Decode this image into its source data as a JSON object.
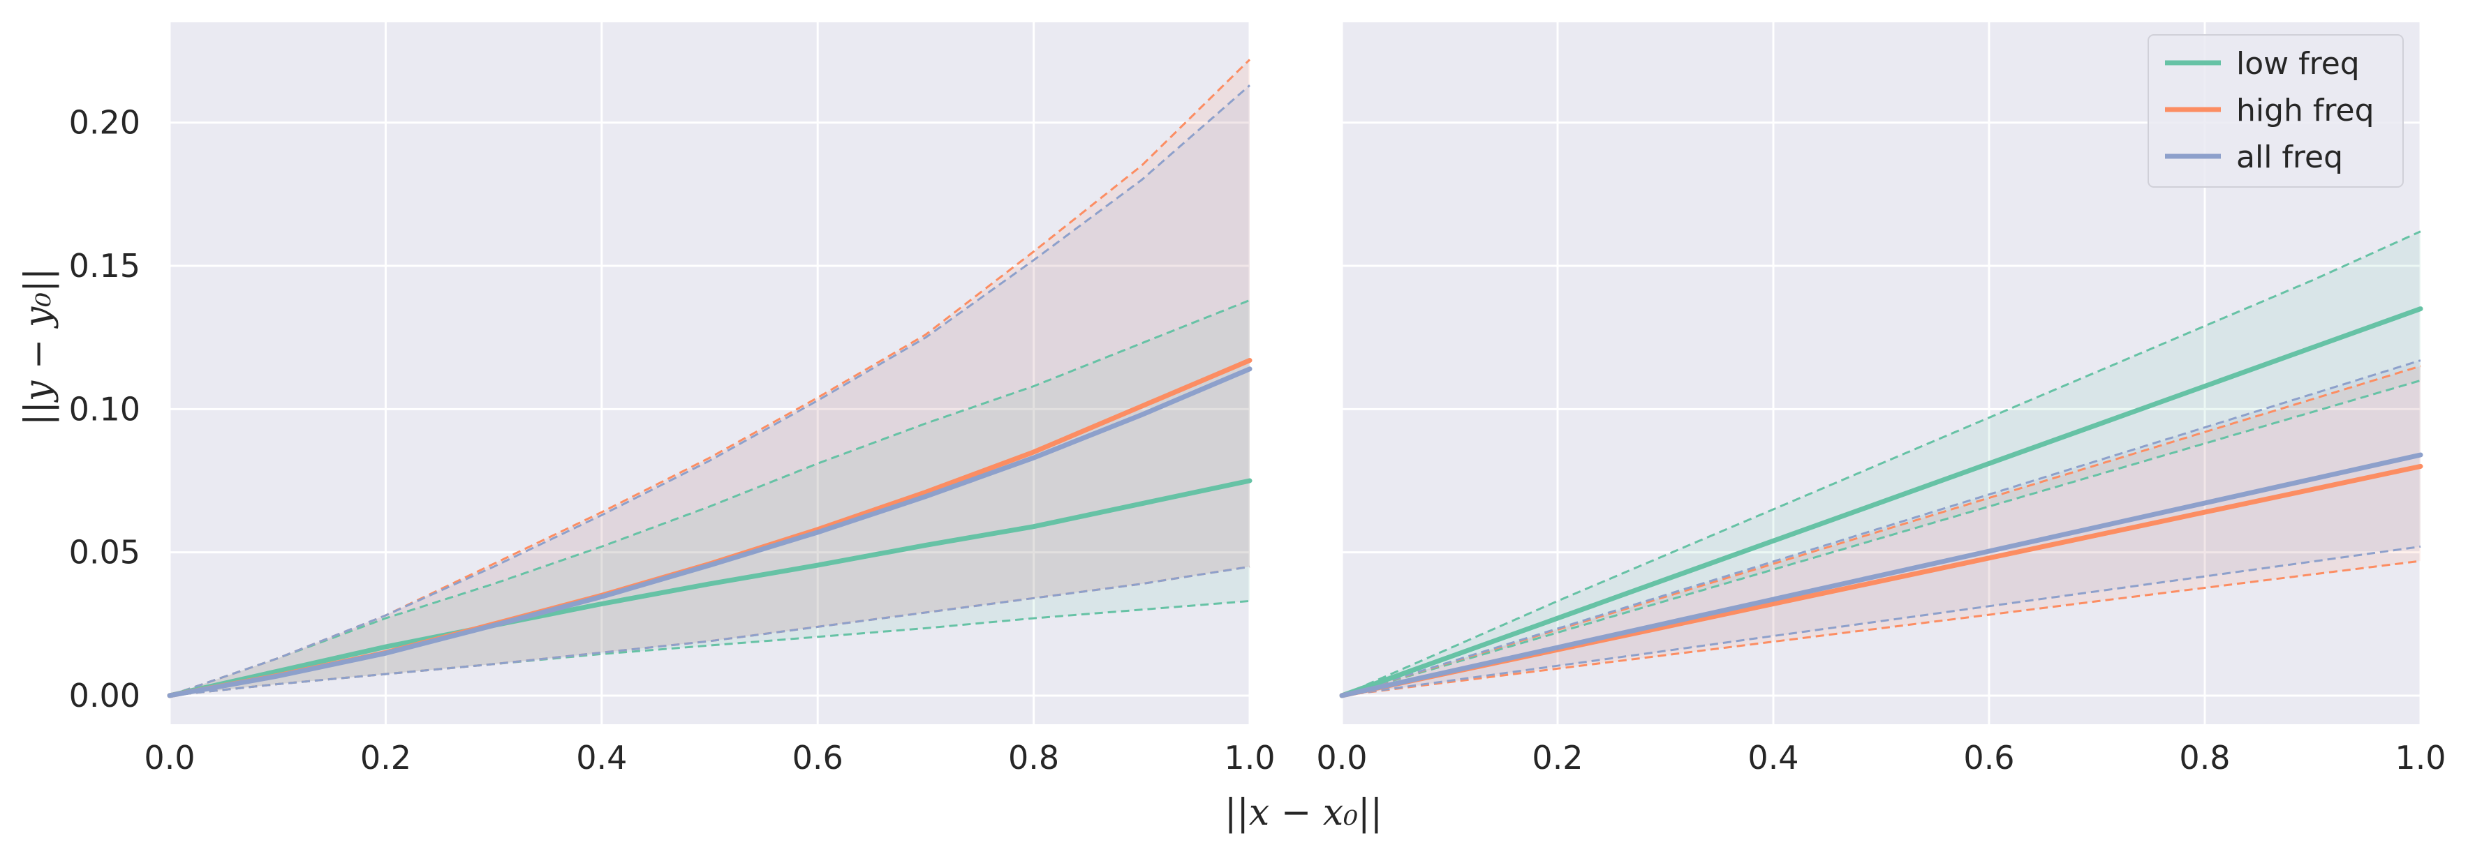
{
  "colors": {
    "background": "#eaeaf2",
    "grid": "#ffffff",
    "low": "#66c2a5",
    "high": "#fc8d62",
    "all": "#8da0cb"
  },
  "chart_data": [
    {
      "type": "line",
      "panel": "left",
      "grid": true,
      "xlabel": "||x − x₀||",
      "ylabel": "||y − y₀||",
      "xlim": [
        0,
        1
      ],
      "ylim": [
        -0.01,
        0.235
      ],
      "xticks": [
        "0.0",
        "0.2",
        "0.4",
        "0.6",
        "0.8",
        "1.0"
      ],
      "yticks": [
        "0.00",
        "0.05",
        "0.10",
        "0.15",
        "0.20"
      ],
      "x": [
        0,
        0.1,
        0.2,
        0.3,
        0.4,
        0.5,
        0.6,
        0.7,
        0.8,
        0.9,
        1.0
      ],
      "series": [
        {
          "name": "low freq",
          "color_key": "low",
          "mean": [
            0,
            0.0085,
            0.017,
            0.0245,
            0.032,
            0.039,
            0.0455,
            0.0525,
            0.059,
            0.067,
            0.075
          ],
          "upper": [
            0,
            0.013,
            0.027,
            0.039,
            0.052,
            0.066,
            0.081,
            0.095,
            0.108,
            0.123,
            0.138
          ],
          "lower": [
            0,
            0.004,
            0.0075,
            0.011,
            0.0145,
            0.0175,
            0.0205,
            0.0235,
            0.027,
            0.03,
            0.033
          ]
        },
        {
          "name": "high freq",
          "color_key": "high",
          "mean": [
            0,
            0.007,
            0.015,
            0.025,
            0.035,
            0.046,
            0.058,
            0.071,
            0.085,
            0.101,
            0.117
          ],
          "upper": [
            0,
            0.013,
            0.028,
            0.046,
            0.064,
            0.083,
            0.104,
            0.126,
            0.155,
            0.185,
            0.222
          ],
          "lower": [
            0,
            0.004,
            0.0075,
            0.011,
            0.015,
            0.019,
            0.024,
            0.029,
            0.034,
            0.039,
            0.045
          ]
        },
        {
          "name": "all freq",
          "color_key": "all",
          "mean": [
            0,
            0.0068,
            0.0148,
            0.0245,
            0.0345,
            0.0455,
            0.057,
            0.0695,
            0.083,
            0.098,
            0.114
          ],
          "upper": [
            0,
            0.013,
            0.028,
            0.045,
            0.063,
            0.082,
            0.103,
            0.125,
            0.152,
            0.18,
            0.213
          ],
          "lower": [
            0,
            0.004,
            0.0075,
            0.011,
            0.015,
            0.019,
            0.024,
            0.029,
            0.034,
            0.039,
            0.045
          ]
        }
      ]
    },
    {
      "type": "line",
      "panel": "right",
      "grid": true,
      "legend": "top-right",
      "xlim": [
        0,
        1
      ],
      "ylim": [
        -0.01,
        0.235
      ],
      "xticks": [
        "0.0",
        "0.2",
        "0.4",
        "0.6",
        "0.8",
        "1.0"
      ],
      "x": [
        0,
        0.1,
        0.2,
        0.3,
        0.4,
        0.5,
        0.6,
        0.7,
        0.8,
        0.9,
        1.0
      ],
      "series": [
        {
          "name": "low freq",
          "color_key": "low",
          "mean": [
            0,
            0.0135,
            0.027,
            0.0405,
            0.054,
            0.0675,
            0.081,
            0.0945,
            0.108,
            0.1215,
            0.135
          ],
          "upper": [
            0,
            0.0165,
            0.033,
            0.049,
            0.065,
            0.081,
            0.097,
            0.113,
            0.129,
            0.145,
            0.162
          ],
          "lower": [
            0,
            0.011,
            0.022,
            0.033,
            0.044,
            0.055,
            0.066,
            0.077,
            0.088,
            0.099,
            0.11
          ]
        },
        {
          "name": "high freq",
          "color_key": "high",
          "mean": [
            0,
            0.008,
            0.016,
            0.024,
            0.032,
            0.04,
            0.048,
            0.056,
            0.064,
            0.072,
            0.08
          ],
          "upper": [
            0,
            0.0115,
            0.023,
            0.0345,
            0.046,
            0.0575,
            0.069,
            0.0805,
            0.092,
            0.1035,
            0.115
          ],
          "lower": [
            0,
            0.0047,
            0.0094,
            0.0141,
            0.0188,
            0.0235,
            0.0282,
            0.0329,
            0.0376,
            0.0423,
            0.047
          ]
        },
        {
          "name": "all freq",
          "color_key": "all",
          "mean": [
            0,
            0.0084,
            0.0168,
            0.0252,
            0.0336,
            0.042,
            0.0504,
            0.0588,
            0.0672,
            0.0756,
            0.084
          ],
          "upper": [
            0,
            0.0117,
            0.0234,
            0.0351,
            0.0468,
            0.0585,
            0.0702,
            0.0819,
            0.0936,
            0.1053,
            0.117
          ],
          "lower": [
            0,
            0.0052,
            0.0104,
            0.0156,
            0.0208,
            0.026,
            0.0312,
            0.0364,
            0.0416,
            0.0468,
            0.052
          ]
        }
      ]
    }
  ]
}
